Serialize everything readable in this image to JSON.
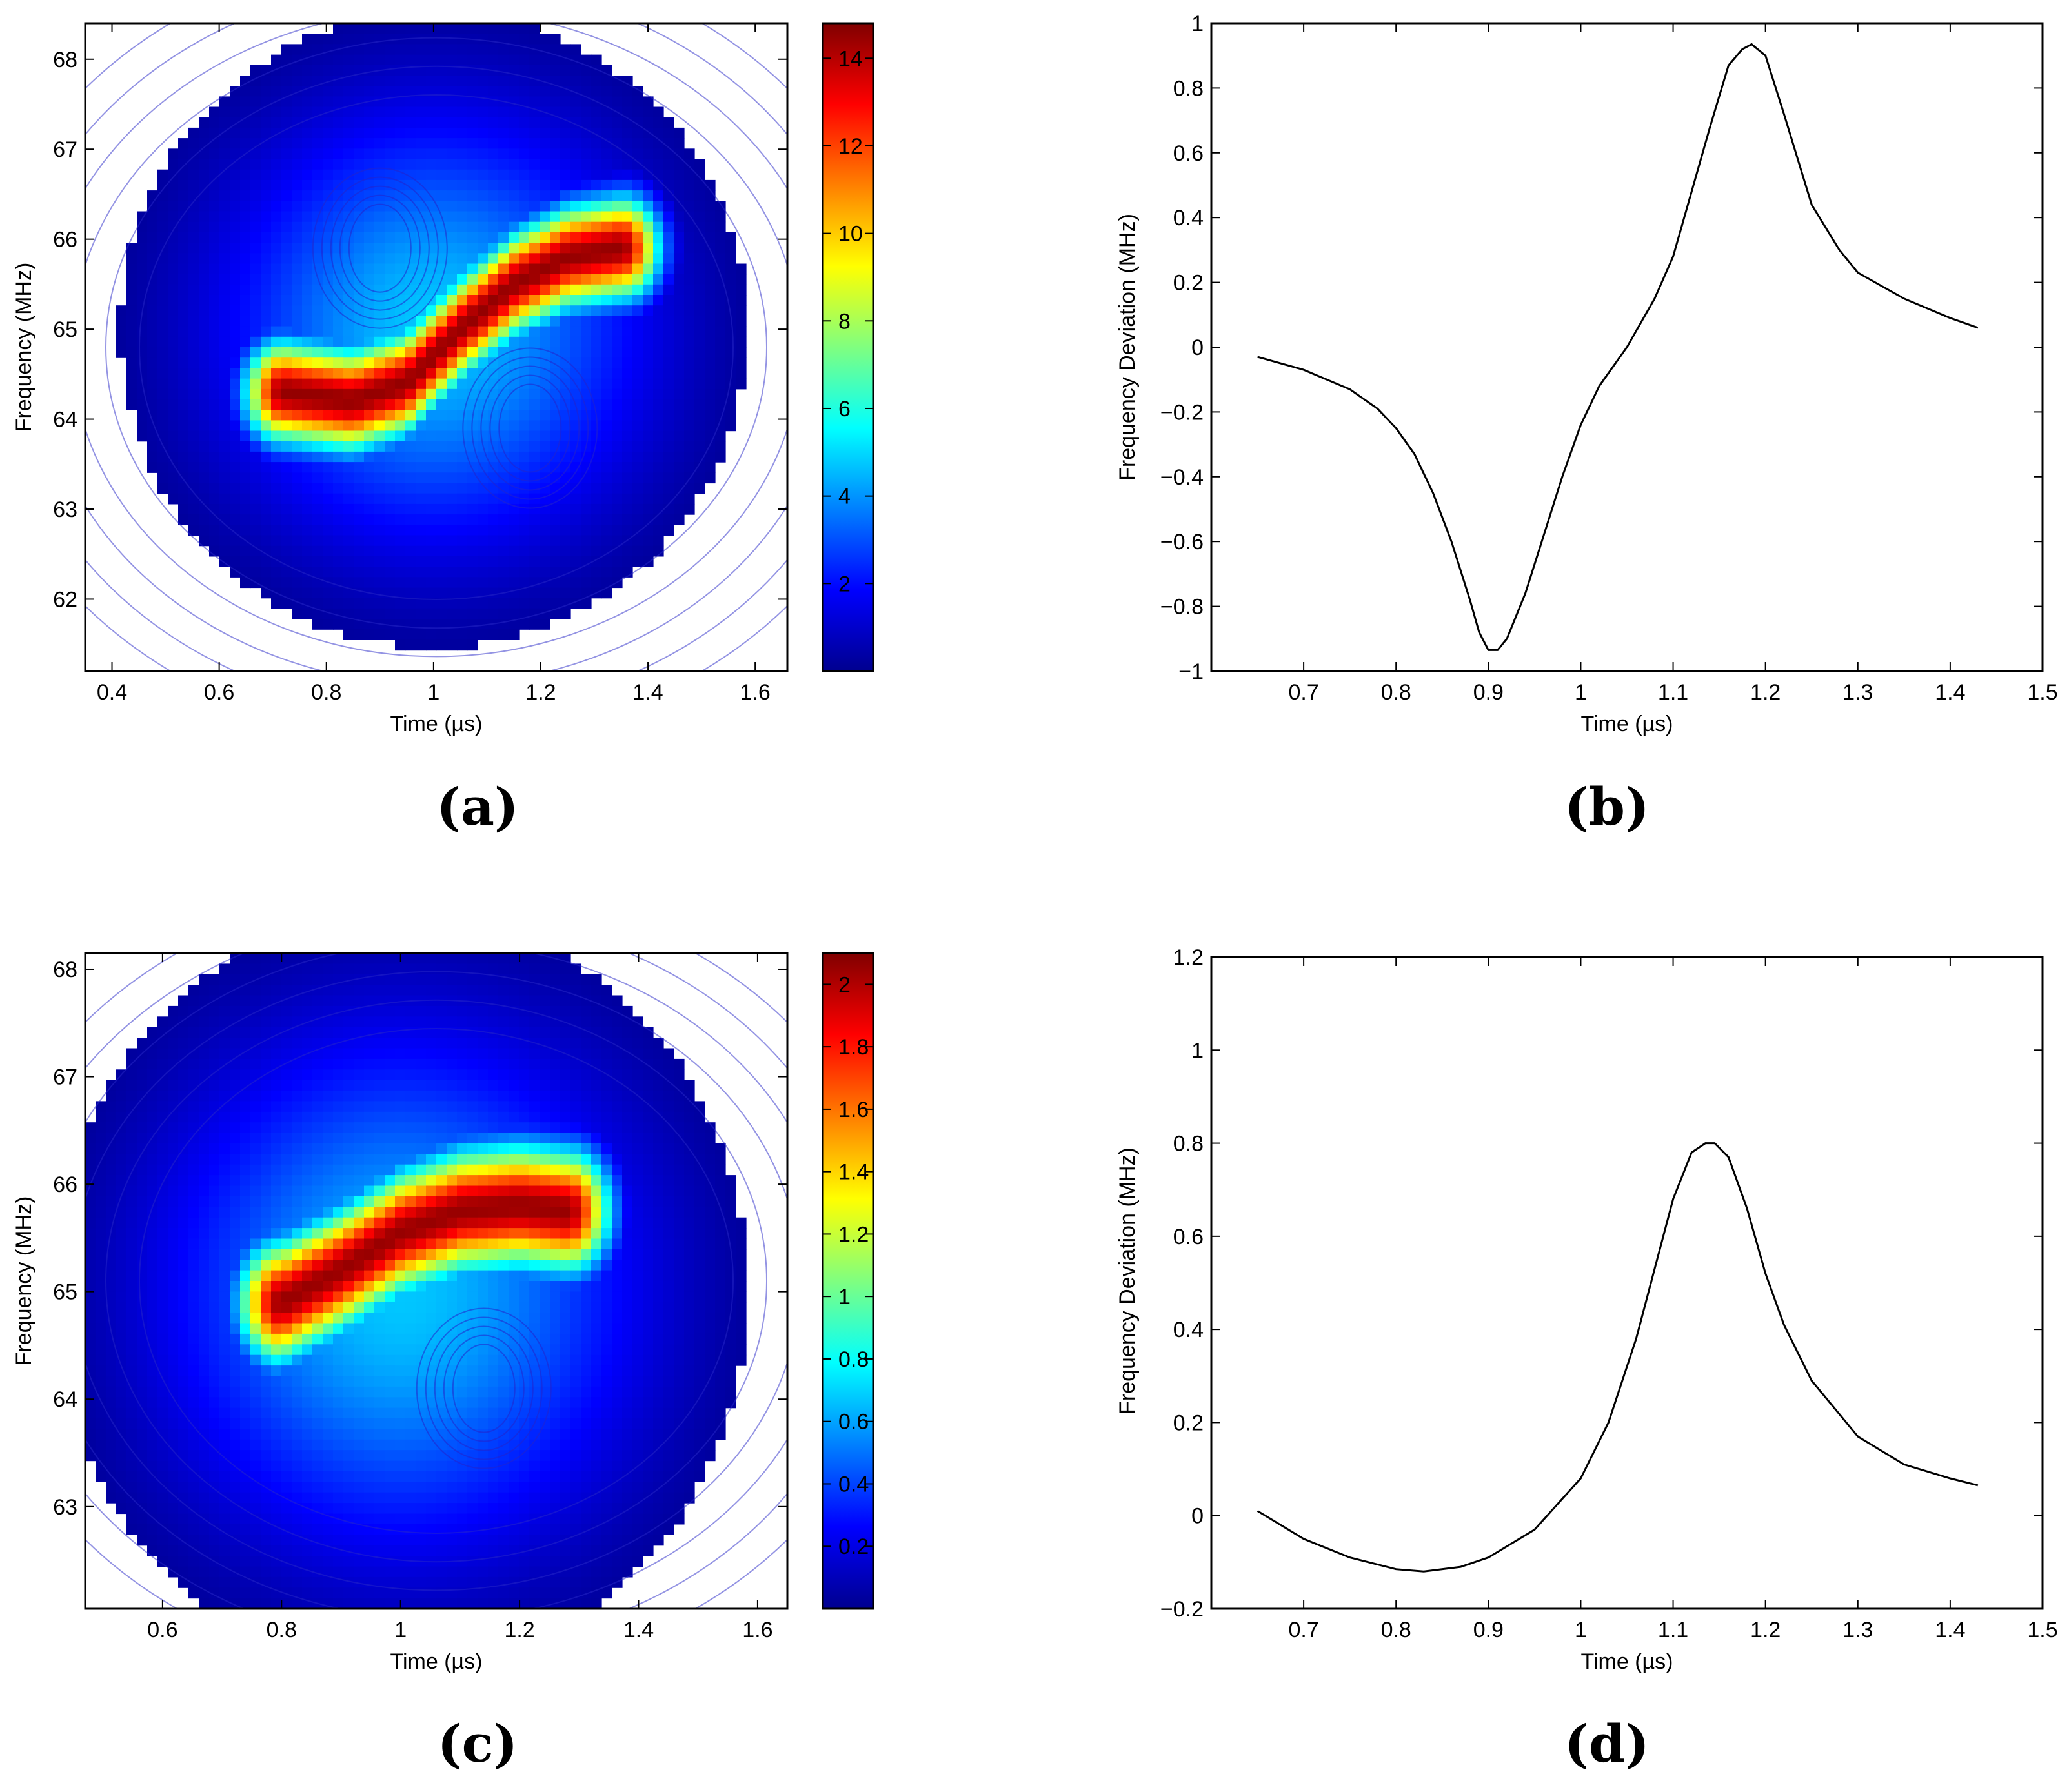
{
  "chart_data": [
    {
      "id": "a",
      "type": "heatmap",
      "panel_label": "(a)",
      "xlabel": "Time (µs)",
      "ylabel": "Frequency (MHz)",
      "xlim": [
        0.35,
        1.66
      ],
      "ylim": [
        61.2,
        68.4
      ],
      "xticks": [
        "0.4",
        "0.6",
        "0.8",
        "1",
        "1.2",
        "1.4",
        "1.6"
      ],
      "xtick_values": [
        0.4,
        0.6,
        0.8,
        1.0,
        1.2,
        1.4,
        1.6
      ],
      "yticks": [
        "62",
        "63",
        "64",
        "65",
        "66",
        "67",
        "68"
      ],
      "ytick_values": [
        62,
        63,
        64,
        65,
        66,
        67,
        68
      ],
      "colorbar": {
        "range": [
          0,
          14.8
        ],
        "ticks": [
          "2",
          "4",
          "6",
          "8",
          "10",
          "12",
          "14"
        ],
        "tick_values": [
          2,
          4,
          6,
          8,
          10,
          12,
          14
        ]
      },
      "features": [
        {
          "name": "ridge",
          "points": [
            [
              0.72,
              64.3
            ],
            [
              0.85,
              64.2
            ],
            [
              0.95,
              64.4
            ],
            [
              1.05,
              65.0
            ],
            [
              1.15,
              65.5
            ],
            [
              1.25,
              65.8
            ],
            [
              1.35,
              65.9
            ]
          ],
          "peak": 14.5
        },
        {
          "name": "hole-upper",
          "center": [
            0.9,
            65.9
          ],
          "value": 4.5
        },
        {
          "name": "hole-lower",
          "center": [
            1.18,
            63.9
          ],
          "value": 4.5
        }
      ]
    },
    {
      "id": "b",
      "type": "line",
      "panel_label": "(b)",
      "xlabel": "Time (µs)",
      "ylabel": "Frequency Deviation (MHz)",
      "xlim": [
        0.6,
        1.5
      ],
      "ylim": [
        -1,
        1
      ],
      "xticks": [
        "0.7",
        "0.8",
        "0.9",
        "1",
        "1.1",
        "1.2",
        "1.3",
        "1.4",
        "1.5"
      ],
      "xtick_values": [
        0.7,
        0.8,
        0.9,
        1.0,
        1.1,
        1.2,
        1.3,
        1.4,
        1.5
      ],
      "yticks": [
        "−1",
        "−0.8",
        "−0.6",
        "−0.4",
        "−0.2",
        "0",
        "0.2",
        "0.4",
        "0.6",
        "0.8",
        "1"
      ],
      "ytick_values": [
        -1,
        -0.8,
        -0.6,
        -0.4,
        -0.2,
        0,
        0.2,
        0.4,
        0.6,
        0.8,
        1
      ],
      "x": [
        0.65,
        0.7,
        0.75,
        0.78,
        0.8,
        0.82,
        0.84,
        0.86,
        0.88,
        0.89,
        0.9,
        0.91,
        0.92,
        0.94,
        0.96,
        0.98,
        1.0,
        1.02,
        1.05,
        1.08,
        1.1,
        1.12,
        1.14,
        1.16,
        1.175,
        1.185,
        1.2,
        1.22,
        1.25,
        1.28,
        1.3,
        1.35,
        1.4,
        1.43
      ],
      "y": [
        -0.03,
        -0.07,
        -0.13,
        -0.19,
        -0.25,
        -0.33,
        -0.45,
        -0.6,
        -0.78,
        -0.88,
        -0.935,
        -0.935,
        -0.9,
        -0.76,
        -0.58,
        -0.4,
        -0.24,
        -0.12,
        0.0,
        0.15,
        0.28,
        0.48,
        0.68,
        0.87,
        0.92,
        0.935,
        0.9,
        0.72,
        0.44,
        0.3,
        0.23,
        0.15,
        0.09,
        0.06
      ]
    },
    {
      "id": "c",
      "type": "heatmap",
      "panel_label": "(c)",
      "xlabel": "Time (µs)",
      "ylabel": "Frequency (MHz)",
      "xlim": [
        0.47,
        1.65
      ],
      "ylim": [
        62.05,
        68.15
      ],
      "xticks": [
        "0.6",
        "0.8",
        "1",
        "1.2",
        "1.4",
        "1.6"
      ],
      "xtick_values": [
        0.6,
        0.8,
        1.0,
        1.2,
        1.4,
        1.6
      ],
      "yticks": [
        "63",
        "64",
        "65",
        "66",
        "67",
        "68"
      ],
      "ytick_values": [
        63,
        64,
        65,
        66,
        67,
        68
      ],
      "colorbar": {
        "range": [
          0,
          2.1
        ],
        "ticks": [
          "0.2",
          "0.4",
          "0.6",
          "0.8",
          "1",
          "1.2",
          "1.4",
          "1.6",
          "1.8",
          "2"
        ],
        "tick_values": [
          0.2,
          0.4,
          0.6,
          0.8,
          1.0,
          1.2,
          1.4,
          1.6,
          1.8,
          2.0
        ]
      },
      "features": [
        {
          "name": "ridge",
          "points": [
            [
              0.8,
              64.9
            ],
            [
              0.9,
              65.2
            ],
            [
              1.0,
              65.55
            ],
            [
              1.1,
              65.75
            ],
            [
              1.2,
              65.8
            ],
            [
              1.28,
              65.75
            ]
          ],
          "peak": 2.05
        },
        {
          "name": "hole-lower",
          "center": [
            1.14,
            64.1
          ],
          "value": 0.5
        }
      ]
    },
    {
      "id": "d",
      "type": "line",
      "panel_label": "(d)",
      "xlabel": "Time (µs)",
      "ylabel": "Frequency Deviation (MHz)",
      "xlim": [
        0.6,
        1.5
      ],
      "ylim": [
        -0.2,
        1.2
      ],
      "xticks": [
        "0.7",
        "0.8",
        "0.9",
        "1",
        "1.1",
        "1.2",
        "1.3",
        "1.4",
        "1.5"
      ],
      "xtick_values": [
        0.7,
        0.8,
        0.9,
        1.0,
        1.1,
        1.2,
        1.3,
        1.4,
        1.5
      ],
      "yticks": [
        "−0.2",
        "0",
        "0.2",
        "0.4",
        "0.6",
        "0.8",
        "1",
        "1.2"
      ],
      "ytick_values": [
        -0.2,
        0,
        0.2,
        0.4,
        0.6,
        0.8,
        1.0,
        1.2
      ],
      "x": [
        0.65,
        0.7,
        0.75,
        0.8,
        0.83,
        0.87,
        0.9,
        0.95,
        1.0,
        1.03,
        1.06,
        1.08,
        1.1,
        1.12,
        1.135,
        1.145,
        1.16,
        1.18,
        1.2,
        1.22,
        1.25,
        1.3,
        1.35,
        1.4,
        1.43
      ],
      "y": [
        0.01,
        -0.05,
        -0.09,
        -0.115,
        -0.12,
        -0.11,
        -0.09,
        -0.03,
        0.08,
        0.2,
        0.38,
        0.53,
        0.68,
        0.78,
        0.8,
        0.8,
        0.77,
        0.66,
        0.52,
        0.41,
        0.29,
        0.17,
        0.11,
        0.08,
        0.065
      ]
    }
  ]
}
